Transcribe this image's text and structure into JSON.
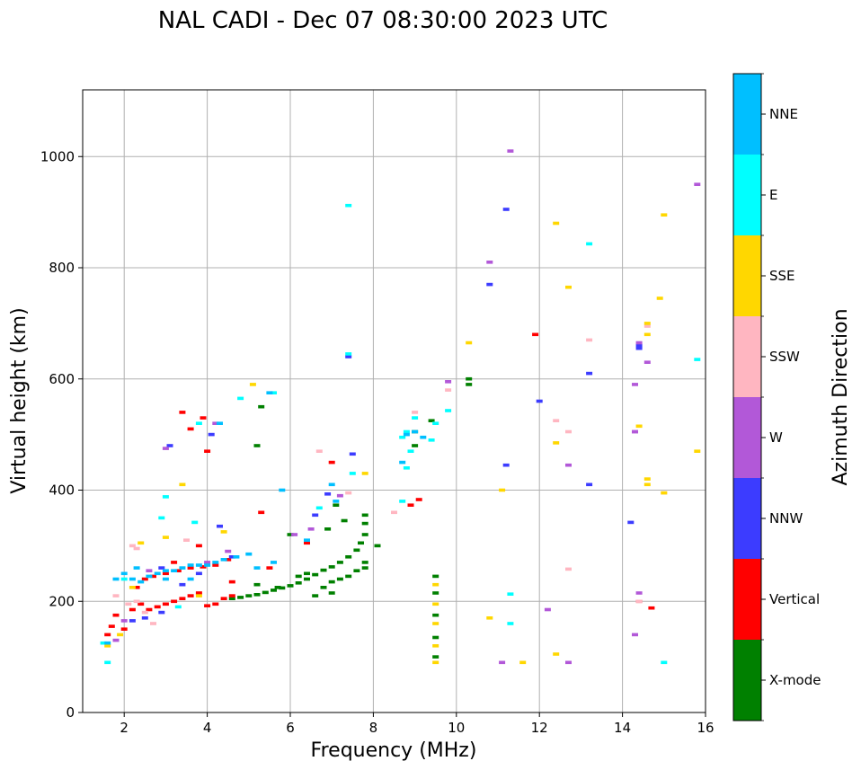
{
  "chart_data": {
    "type": "scatter",
    "title": "NAL CADI - Dec 07 08:30:00 2023 UTC",
    "xlabel": "Frequency (MHz)",
    "ylabel": "Virtual height (km)",
    "xlim": [
      1,
      16
    ],
    "ylim": [
      0,
      1120
    ],
    "xticks": [
      2,
      4,
      6,
      8,
      10,
      12,
      14,
      16
    ],
    "yticks": [
      0,
      200,
      400,
      600,
      800,
      1000
    ],
    "grid": true,
    "colorbar": {
      "label": "Azimuth Direction",
      "categories": [
        {
          "name": "X-mode",
          "color": "#008000"
        },
        {
          "name": "Vertical",
          "color": "#ff0000"
        },
        {
          "name": "NNW",
          "color": "#3c3cff"
        },
        {
          "name": "W",
          "color": "#b258d8"
        },
        {
          "name": "SSW",
          "color": "#ffb6c1"
        },
        {
          "name": "SSE",
          "color": "#ffd700"
        },
        {
          "name": "E",
          "color": "#00ffff"
        },
        {
          "name": "NNE",
          "color": "#00bfff"
        }
      ]
    },
    "series": [
      {
        "name": "X-mode",
        "points": [
          [
            4.6,
            205
          ],
          [
            4.8,
            207
          ],
          [
            5.0,
            210
          ],
          [
            5.2,
            212
          ],
          [
            5.4,
            216
          ],
          [
            5.6,
            220
          ],
          [
            5.8,
            224
          ],
          [
            6.0,
            228
          ],
          [
            6.2,
            233
          ],
          [
            6.4,
            240
          ],
          [
            6.6,
            248
          ],
          [
            6.8,
            256
          ],
          [
            7.0,
            262
          ],
          [
            7.2,
            270
          ],
          [
            7.4,
            280
          ],
          [
            7.6,
            292
          ],
          [
            7.7,
            305
          ],
          [
            7.8,
            320
          ],
          [
            7.8,
            340
          ],
          [
            7.8,
            355
          ],
          [
            7.0,
            235
          ],
          [
            7.2,
            240
          ],
          [
            7.4,
            245
          ],
          [
            7.6,
            255
          ],
          [
            7.8,
            270
          ],
          [
            8.1,
            300
          ],
          [
            7.8,
            260
          ],
          [
            6.8,
            225
          ],
          [
            6.6,
            210
          ],
          [
            7.0,
            215
          ],
          [
            6.4,
            250
          ],
          [
            6.2,
            245
          ],
          [
            5.7,
            225
          ],
          [
            5.2,
            230
          ],
          [
            6.9,
            330
          ],
          [
            7.3,
            345
          ],
          [
            7.1,
            373
          ],
          [
            9.5,
            100
          ],
          [
            9.5,
            135
          ],
          [
            9.5,
            175
          ],
          [
            9.5,
            215
          ],
          [
            9.5,
            245
          ],
          [
            9.0,
            505
          ],
          [
            9.0,
            480
          ],
          [
            9.4,
            525
          ],
          [
            10.3,
            600
          ],
          [
            10.3,
            590
          ],
          [
            5.3,
            550
          ],
          [
            5.2,
            480
          ],
          [
            6.0,
            320
          ]
        ]
      },
      {
        "name": "Vertical",
        "points": [
          [
            2.6,
            185
          ],
          [
            2.8,
            190
          ],
          [
            3.0,
            195
          ],
          [
            3.2,
            200
          ],
          [
            3.4,
            205
          ],
          [
            3.6,
            210
          ],
          [
            3.8,
            215
          ],
          [
            4.0,
            192
          ],
          [
            4.2,
            195
          ],
          [
            4.4,
            205
          ],
          [
            4.6,
            210
          ],
          [
            2.4,
            195
          ],
          [
            2.2,
            185
          ],
          [
            1.8,
            175
          ],
          [
            1.7,
            155
          ],
          [
            1.6,
            140
          ],
          [
            2.0,
            150
          ],
          [
            2.3,
            225
          ],
          [
            2.5,
            240
          ],
          [
            2.7,
            245
          ],
          [
            3.0,
            250
          ],
          [
            3.3,
            255
          ],
          [
            3.6,
            260
          ],
          [
            3.9,
            262
          ],
          [
            4.2,
            265
          ],
          [
            4.5,
            275
          ],
          [
            3.8,
            300
          ],
          [
            4.0,
            470
          ],
          [
            3.9,
            530
          ],
          [
            3.6,
            510
          ],
          [
            3.4,
            540
          ],
          [
            9.1,
            383
          ],
          [
            8.9,
            373
          ],
          [
            11.9,
            680
          ],
          [
            14.7,
            188
          ],
          [
            14.4,
            200
          ],
          [
            5.5,
            260
          ],
          [
            5.3,
            360
          ],
          [
            6.4,
            305
          ],
          [
            7.0,
            450
          ],
          [
            4.6,
            235
          ],
          [
            3.2,
            270
          ]
        ]
      },
      {
        "name": "NNW",
        "points": [
          [
            2.5,
            170
          ],
          [
            2.2,
            165
          ],
          [
            2.9,
            180
          ],
          [
            3.4,
            230
          ],
          [
            3.8,
            250
          ],
          [
            4.3,
            335
          ],
          [
            4.6,
            280
          ],
          [
            4.1,
            500
          ],
          [
            6.6,
            355
          ],
          [
            7.5,
            465
          ],
          [
            6.9,
            393
          ],
          [
            7.4,
            640
          ],
          [
            11.2,
            905
          ],
          [
            10.8,
            770
          ],
          [
            11.2,
            445
          ],
          [
            12.0,
            560
          ],
          [
            13.2,
            410
          ],
          [
            13.2,
            610
          ],
          [
            14.2,
            342
          ],
          [
            14.4,
            655
          ],
          [
            14.4,
            660
          ],
          [
            3.1,
            480
          ],
          [
            2.9,
            260
          ]
        ]
      },
      {
        "name": "W",
        "points": [
          [
            1.8,
            130
          ],
          [
            2.0,
            165
          ],
          [
            2.6,
            255
          ],
          [
            4.0,
            270
          ],
          [
            4.5,
            290
          ],
          [
            3.0,
            475
          ],
          [
            4.2,
            520
          ],
          [
            6.1,
            320
          ],
          [
            6.5,
            330
          ],
          [
            7.2,
            390
          ],
          [
            10.8,
            810
          ],
          [
            11.3,
            1010
          ],
          [
            12.2,
            185
          ],
          [
            12.7,
            445
          ],
          [
            11.1,
            90
          ],
          [
            12.7,
            90
          ],
          [
            14.6,
            630
          ],
          [
            14.3,
            590
          ],
          [
            14.3,
            505
          ],
          [
            14.3,
            505
          ],
          [
            14.4,
            215
          ],
          [
            15.8,
            950
          ],
          [
            14.4,
            665
          ],
          [
            9.8,
            595
          ],
          [
            14.3,
            140
          ]
        ]
      },
      {
        "name": "SSW",
        "points": [
          [
            2.1,
            195
          ],
          [
            2.3,
            200
          ],
          [
            1.8,
            210
          ],
          [
            2.5,
            180
          ],
          [
            2.3,
            295
          ],
          [
            2.2,
            300
          ],
          [
            3.5,
            310
          ],
          [
            2.7,
            160
          ],
          [
            6.7,
            470
          ],
          [
            7.4,
            395
          ],
          [
            8.5,
            360
          ],
          [
            9.0,
            540
          ],
          [
            12.4,
            525
          ],
          [
            12.7,
            505
          ],
          [
            12.7,
            258
          ],
          [
            14.6,
            695
          ],
          [
            13.2,
            670
          ],
          [
            14.4,
            200
          ],
          [
            15.0,
            395
          ],
          [
            9.8,
            580
          ]
        ]
      },
      {
        "name": "SSE",
        "points": [
          [
            1.6,
            120
          ],
          [
            1.9,
            140
          ],
          [
            2.2,
            225
          ],
          [
            2.4,
            305
          ],
          [
            3.0,
            315
          ],
          [
            3.4,
            410
          ],
          [
            4.4,
            325
          ],
          [
            5.1,
            590
          ],
          [
            7.8,
            430
          ],
          [
            9.5,
            90
          ],
          [
            9.5,
            120
          ],
          [
            9.5,
            160
          ],
          [
            9.5,
            195
          ],
          [
            9.5,
            230
          ],
          [
            10.3,
            665
          ],
          [
            10.8,
            170
          ],
          [
            11.6,
            90
          ],
          [
            12.4,
            105
          ],
          [
            12.4,
            485
          ],
          [
            12.4,
            880
          ],
          [
            12.7,
            765
          ],
          [
            15.0,
            895
          ],
          [
            14.9,
            745
          ],
          [
            14.6,
            700
          ],
          [
            14.6,
            680
          ],
          [
            14.6,
            420
          ],
          [
            14.6,
            410
          ],
          [
            14.4,
            515
          ],
          [
            15.0,
            395
          ],
          [
            15.8,
            470
          ],
          [
            11.1,
            400
          ],
          [
            3.8,
            210
          ]
        ]
      },
      {
        "name": "E",
        "points": [
          [
            1.6,
            90
          ],
          [
            1.5,
            125
          ],
          [
            2.0,
            240
          ],
          [
            3.0,
            388
          ],
          [
            3.3,
            190
          ],
          [
            3.8,
            520
          ],
          [
            4.8,
            565
          ],
          [
            5.6,
            575
          ],
          [
            7.4,
            912
          ],
          [
            7.4,
            645
          ],
          [
            7.5,
            430
          ],
          [
            8.7,
            380
          ],
          [
            8.7,
            495
          ],
          [
            8.8,
            505
          ],
          [
            8.9,
            470
          ],
          [
            8.8,
            440
          ],
          [
            9.0,
            530
          ],
          [
            9.4,
            490
          ],
          [
            9.5,
            520
          ],
          [
            9.8,
            543
          ],
          [
            11.3,
            160
          ],
          [
            11.3,
            213
          ],
          [
            13.2,
            843
          ],
          [
            15.0,
            90
          ],
          [
            15.8,
            635
          ],
          [
            6.7,
            368
          ],
          [
            2.9,
            350
          ],
          [
            3.7,
            342
          ]
        ]
      },
      {
        "name": "NNE",
        "points": [
          [
            1.6,
            125
          ],
          [
            1.8,
            240
          ],
          [
            2.0,
            250
          ],
          [
            2.2,
            240
          ],
          [
            2.4,
            235
          ],
          [
            2.6,
            245
          ],
          [
            2.8,
            250
          ],
          [
            3.0,
            255
          ],
          [
            3.2,
            255
          ],
          [
            3.4,
            260
          ],
          [
            3.6,
            265
          ],
          [
            3.8,
            265
          ],
          [
            4.0,
            265
          ],
          [
            4.2,
            270
          ],
          [
            4.4,
            275
          ],
          [
            4.7,
            280
          ],
          [
            5.0,
            285
          ],
          [
            5.2,
            260
          ],
          [
            5.6,
            270
          ],
          [
            6.4,
            310
          ],
          [
            2.3,
            260
          ],
          [
            3.0,
            240
          ],
          [
            3.6,
            240
          ],
          [
            4.3,
            520
          ],
          [
            5.5,
            575
          ],
          [
            8.8,
            500
          ],
          [
            9.0,
            505
          ],
          [
            8.7,
            450
          ],
          [
            9.2,
            495
          ],
          [
            5.8,
            400
          ],
          [
            7.0,
            410
          ],
          [
            7.1,
            380
          ]
        ]
      }
    ]
  }
}
